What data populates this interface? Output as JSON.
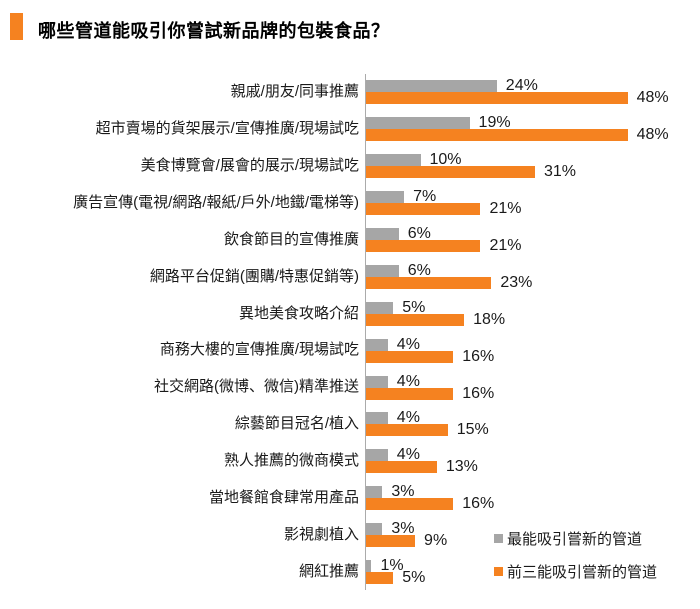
{
  "title": {
    "text": "哪些管道能吸引你嘗試新品牌的包裝食品？"
  },
  "colors": {
    "orange": "#F58220",
    "gray": "#A6A6A6",
    "axis": "#ABABAB",
    "title_marker": "#F58220"
  },
  "legend": {
    "items": [
      {
        "label": "最能吸引嘗新的管道",
        "color_key": "gray"
      },
      {
        "label": "前三能吸引嘗新的管道",
        "color_key": "orange"
      }
    ]
  },
  "chart_data": {
    "type": "bar",
    "orientation": "horizontal",
    "title": "哪些管道能吸引你嘗試新品牌的包裝食品？",
    "categories": [
      "親戚/朋友/同事推薦",
      "超市賣場的貨架展示/宣傳推廣/現場試吃",
      "美食博覽會/展會的展示/現場試吃",
      "廣告宣傳(電視/網路/報紙/戶外/地鐵/電梯等)",
      "飲食節目的宣傳推廣",
      "網路平台促銷(團購/特惠促銷等)",
      "異地美食攻略介紹",
      "商務大樓的宣傳推廣/現場試吃",
      "社交網路(微博、微信)精準推送",
      "綜藝節目冠名/植入",
      "熟人推薦的微商模式",
      "當地餐館食肆常用產品",
      "影視劇植入",
      "網紅推薦"
    ],
    "series": [
      {
        "name": "最能吸引嘗新的管道",
        "color": "#A6A6A6",
        "values": [
          24,
          19,
          10,
          7,
          6,
          6,
          5,
          4,
          4,
          4,
          4,
          3,
          3,
          1
        ]
      },
      {
        "name": "前三能吸引嘗新的管道",
        "color": "#F58220",
        "values": [
          48,
          48,
          31,
          21,
          21,
          23,
          18,
          16,
          16,
          15,
          13,
          16,
          9,
          5
        ]
      }
    ],
    "value_suffix": "%",
    "xlim": [
      0,
      50
    ],
    "grid": false,
    "legend_position": "bottom-right",
    "value_labels": true
  }
}
